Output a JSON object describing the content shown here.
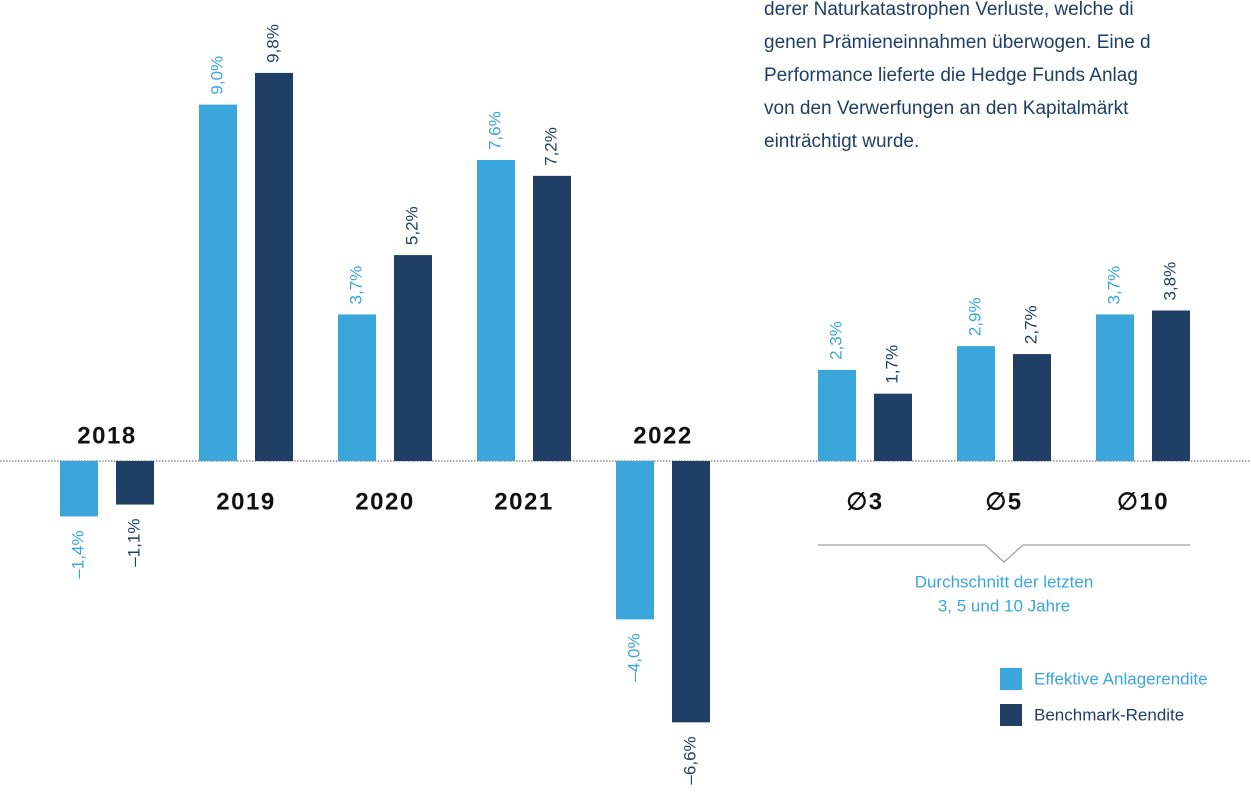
{
  "paragraph": [
    "derer Naturkatastrophen Verluste, welche di",
    "genen Prämieneinnahmen überwogen. Eine d",
    "Performance lieferte die Hedge Funds Anlag",
    "von den Verwerfungen an den Kapitalmärkt",
    "einträchtigt wurde."
  ],
  "chart_data": {
    "type": "bar",
    "categories": [
      "2018",
      "2019",
      "2020",
      "2021",
      "2022",
      "∅3",
      "∅5",
      "∅10"
    ],
    "series": [
      {
        "name": "Effektive Anlagerendite",
        "color": "#3ba6db",
        "values": [
          -1.4,
          9.0,
          3.7,
          7.6,
          -4.0,
          2.3,
          2.9,
          3.7
        ],
        "value_labels": [
          "–1,4%",
          "9,0%",
          "3,7%",
          "7,6%",
          "–4,0%",
          "2,3%",
          "2,9%",
          "3,7%"
        ]
      },
      {
        "name": "Benchmark-Rendite",
        "color": "#1f3f66",
        "values": [
          -1.1,
          9.8,
          5.2,
          7.2,
          -6.6,
          1.7,
          2.7,
          3.8
        ],
        "value_labels": [
          "–1,1%",
          "9,8%",
          "5,2%",
          "7,2%",
          "–6,6%",
          "1,7%",
          "2,7%",
          "3,8%"
        ]
      }
    ],
    "annotation": [
      "Durchschnitt der letzten",
      "3, 5 und 10 Jahre"
    ]
  }
}
